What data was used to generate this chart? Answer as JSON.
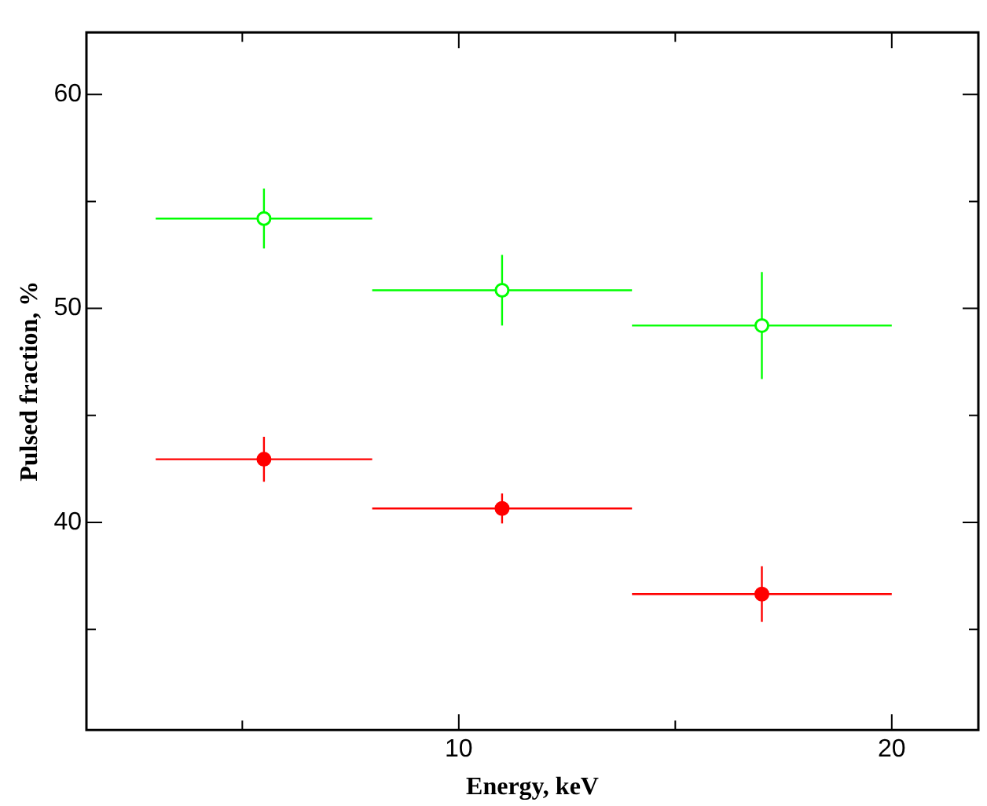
{
  "chart_data": {
    "type": "scatter",
    "xlabel": "Energy, keV",
    "ylabel": "Pulsed fraction, %",
    "series": [
      {
        "color": "#00ff00",
        "x": [
          5.5,
          11,
          17
        ],
        "values": [
          54.2,
          50.85,
          49.2
        ],
        "errors": [
          1.4,
          1.65,
          2.5
        ],
        "xerrors": [
          2.5,
          3,
          3
        ]
      },
      {
        "color": "#ff0000",
        "x": [
          5.5,
          11,
          17
        ],
        "values": [
          42.95,
          40.65,
          36.65
        ],
        "errors": [
          1.05,
          0.7,
          1.3
        ],
        "xerrors": [
          2.5,
          3,
          3
        ]
      }
    ],
    "xlim": [
      1.4,
      22
    ],
    "ylim": [
      30.3,
      62.9
    ],
    "xticks": [
      {
        "value": 5,
        "label": null
      },
      10,
      {
        "value": 15,
        "label": null
      },
      20
    ],
    "yticks": [
      {
        "value": 35,
        "label": null
      },
      40,
      {
        "value": 45,
        "label": null
      },
      50,
      {
        "value": 55,
        "label": null
      },
      60
    ],
    "grid": false,
    "legend": false,
    "marker": "circle"
  }
}
